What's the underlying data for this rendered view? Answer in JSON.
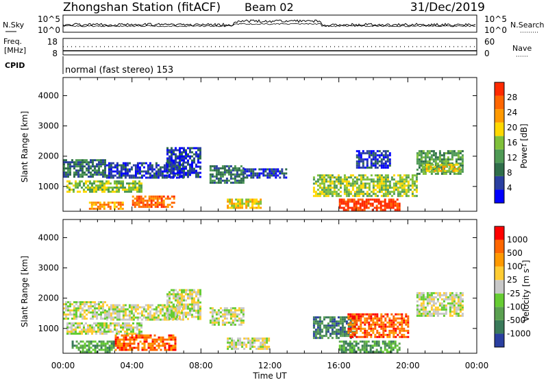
{
  "header": {
    "station": "Zhongshan Station (fitACF)",
    "beam": "Beam 02",
    "date": "31/Dec/2019"
  },
  "strips": {
    "nsky_label": "N.Sky",
    "nsky_ticks": [
      "10^5",
      "10^0"
    ],
    "nsearch_label": "N.Search",
    "nsearch_ticks": [
      "10^5",
      "10^0"
    ],
    "freq_label": "Freq.",
    "freq_unit": "[MHz]",
    "freq_ticks": [
      "18",
      "8"
    ],
    "nave_label": "Nave",
    "nave_ticks": [
      "60",
      "0"
    ],
    "cpid_label": "CPID",
    "cpid_text": "normal (fast stereo) 153"
  },
  "chart_data": [
    {
      "type": "heatmap",
      "panel": "power",
      "ylabel": "Slant Range [km]",
      "xlabel": "Time UT",
      "y_ticks": [
        1000,
        2000,
        3000,
        4000
      ],
      "ylim": [
        180,
        4600
      ],
      "x_ticks": [
        "00:00",
        "04:00",
        "08:00",
        "12:00",
        "16:00",
        "20:00",
        "00:00"
      ],
      "xlim_hours": [
        0,
        24
      ],
      "colorbar": {
        "label": "Power [dB]",
        "ticks": [
          "28",
          "24",
          "20",
          "16",
          "12",
          "8",
          "4"
        ],
        "colors": [
          "#0000ff",
          "#2a3fa0",
          "#2f6e4a",
          "#4f9a55",
          "#7fc03a",
          "#ffd800",
          "#ff9900",
          "#ff6600",
          "#ff2a00"
        ]
      },
      "echo_regions": [
        {
          "t": [
            0.0,
            2.5
          ],
          "r": [
            1300,
            1900
          ],
          "level": 2
        },
        {
          "t": [
            2.5,
            7.0
          ],
          "r": [
            1300,
            1800
          ],
          "level": 1
        },
        {
          "t": [
            0.2,
            4.5
          ],
          "r": [
            800,
            1200
          ],
          "level": 4
        },
        {
          "t": [
            4.0,
            6.5
          ],
          "r": [
            300,
            700
          ],
          "level": 7
        },
        {
          "t": [
            1.5,
            3.5
          ],
          "r": [
            250,
            500
          ],
          "level": 6
        },
        {
          "t": [
            6.0,
            8.0
          ],
          "r": [
            1300,
            2300
          ],
          "level": 1
        },
        {
          "t": [
            8.5,
            10.5
          ],
          "r": [
            1100,
            1700
          ],
          "level": 2
        },
        {
          "t": [
            10.5,
            13.0
          ],
          "r": [
            1300,
            1600
          ],
          "level": 1
        },
        {
          "t": [
            9.5,
            11.5
          ],
          "r": [
            300,
            600
          ],
          "level": 5
        },
        {
          "t": [
            14.5,
            20.5
          ],
          "r": [
            700,
            1400
          ],
          "level": 4
        },
        {
          "t": [
            16.0,
            19.5
          ],
          "r": [
            250,
            600
          ],
          "level": 8
        },
        {
          "t": [
            17.0,
            19.0
          ],
          "r": [
            1600,
            2200
          ],
          "level": 1
        },
        {
          "t": [
            20.5,
            23.2
          ],
          "r": [
            1400,
            2200
          ],
          "level": 3
        },
        {
          "t": [
            20.8,
            23.0
          ],
          "r": [
            1500,
            1750
          ],
          "level": 5
        }
      ]
    },
    {
      "type": "heatmap",
      "panel": "velocity",
      "ylabel": "Slant Range [km]",
      "xlabel": "Time UT",
      "y_ticks": [
        1000,
        2000,
        3000,
        4000
      ],
      "ylim": [
        180,
        4600
      ],
      "x_ticks": [
        "00:00",
        "04:00",
        "08:00",
        "12:00",
        "16:00",
        "20:00",
        "00:00"
      ],
      "xlim_hours": [
        0,
        24
      ],
      "colorbar": {
        "label": "Velocity [m s",
        "label_sup": "-1",
        "label_end": "]",
        "ticks": [
          "1000",
          "500",
          "100",
          "25",
          "-25",
          "-100",
          "-500",
          "-1000"
        ],
        "colors": [
          "#2a3fa0",
          "#3a7a5a",
          "#5aa050",
          "#66cc33",
          "#c8c8c8",
          "#ffcc33",
          "#ff9900",
          "#ff6600",
          "#ff0000"
        ]
      },
      "echo_regions": [
        {
          "t": [
            0.0,
            2.5
          ],
          "r": [
            1300,
            1900
          ],
          "level": 4
        },
        {
          "t": [
            2.5,
            7.0
          ],
          "r": [
            1300,
            1800
          ],
          "level": 4
        },
        {
          "t": [
            0.2,
            4.5
          ],
          "r": [
            800,
            1200
          ],
          "level": 4
        },
        {
          "t": [
            3.0,
            6.5
          ],
          "r": [
            300,
            800
          ],
          "level": 7
        },
        {
          "t": [
            0.5,
            3.0
          ],
          "r": [
            250,
            600
          ],
          "level": 2
        },
        {
          "t": [
            6.0,
            8.0
          ],
          "r": [
            1300,
            2300
          ],
          "level": 4
        },
        {
          "t": [
            8.5,
            10.5
          ],
          "r": [
            1100,
            1700
          ],
          "level": 4
        },
        {
          "t": [
            9.5,
            12.0
          ],
          "r": [
            300,
            700
          ],
          "level": 4
        },
        {
          "t": [
            14.5,
            17.0
          ],
          "r": [
            700,
            1400
          ],
          "level": 1
        },
        {
          "t": [
            16.5,
            20.0
          ],
          "r": [
            700,
            1500
          ],
          "level": 7
        },
        {
          "t": [
            16.0,
            19.5
          ],
          "r": [
            250,
            600
          ],
          "level": 2
        },
        {
          "t": [
            20.5,
            23.2
          ],
          "r": [
            1400,
            2200
          ],
          "level": 4
        }
      ]
    }
  ]
}
